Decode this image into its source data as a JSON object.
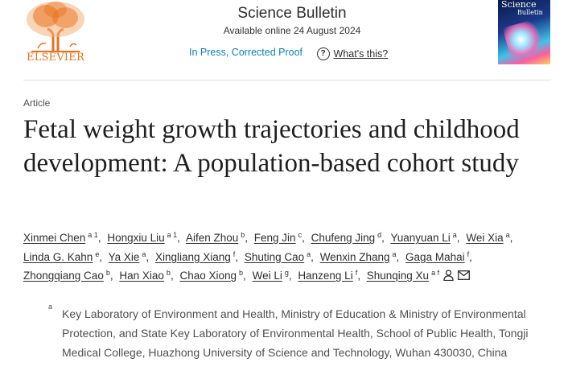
{
  "publisher": {
    "logo_text": "ELSEVIER"
  },
  "journal": {
    "title": "Science Bulletin",
    "available": "Available online 24 August 2024",
    "status_link": "In Press, Corrected Proof",
    "help_link": "What's this?"
  },
  "cover": {
    "title": "Science",
    "subtitle": "Bulletin"
  },
  "article": {
    "type": "Article",
    "title": "Fetal weight growth trajectories and childhood development: A population-based cohort study"
  },
  "authors": [
    {
      "name": "Xinmei Chen",
      "sup": "a 1"
    },
    {
      "name": "Hongxiu Liu",
      "sup": "a 1"
    },
    {
      "name": "Aifen Zhou",
      "sup": "b"
    },
    {
      "name": "Feng Jin",
      "sup": "c"
    },
    {
      "name": "Chufeng Jing",
      "sup": "d"
    },
    {
      "name": "Yuanyuan Li",
      "sup": "a"
    },
    {
      "name": "Wei Xia",
      "sup": "a"
    },
    {
      "name": "Linda G. Kahn",
      "sup": "e"
    },
    {
      "name": "Ya Xie",
      "sup": "a"
    },
    {
      "name": "Xingliang Xiang",
      "sup": "f"
    },
    {
      "name": "Shuting Cao",
      "sup": "a"
    },
    {
      "name": "Wenxin Zhang",
      "sup": "a"
    },
    {
      "name": "Gaga Mahai",
      "sup": "f"
    },
    {
      "name": "Zhongqiang Cao",
      "sup": "b"
    },
    {
      "name": "Han Xiao",
      "sup": "b"
    },
    {
      "name": "Chao Xiong",
      "sup": "b"
    },
    {
      "name": "Wei Li",
      "sup": "g"
    },
    {
      "name": "Hanzeng Li",
      "sup": "f"
    },
    {
      "name": "Shunqing Xu",
      "sup": "a f"
    }
  ],
  "affiliations": [
    {
      "sup": "a",
      "text": "Key Laboratory of Environment and Health, Ministry of Education & Ministry of Environmental Protection, and State Key Laboratory of Environmental Health, School of Public Health, Tongji Medical College, Huazhong University of Science and Technology, Wuhan 430030, China"
    }
  ],
  "icons": {
    "corresponding": "person-icon",
    "email": "envelope-icon",
    "help": "question-circle-icon"
  },
  "colors": {
    "link": "#0c7dbb",
    "logo": "#e9711c"
  }
}
